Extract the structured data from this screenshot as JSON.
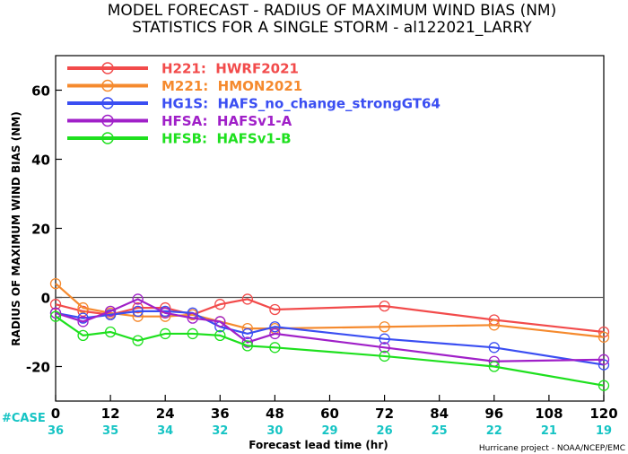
{
  "chart_data": {
    "type": "line",
    "title": "MODEL FORECAST - RADIUS OF MAXIMUM WIND BIAS (NM)",
    "subtitle": "STATISTICS FOR A SINGLE STORM - al122021_LARRY",
    "xlabel": "Forecast lead time (hr)",
    "ylabel": "RADIUS OF MAXIMUM WIND BIAS (NM)",
    "xlim": [
      0,
      120
    ],
    "ylim": [
      -30,
      70
    ],
    "xticks": [
      0,
      12,
      24,
      36,
      48,
      60,
      72,
      84,
      96,
      108,
      120
    ],
    "yticks": [
      -20,
      0,
      20,
      40,
      60
    ],
    "x": [
      0,
      6,
      12,
      18,
      24,
      30,
      36,
      42,
      48,
      72,
      96,
      120
    ],
    "reference_line_y": 0,
    "grid": false,
    "legend_position": "top-left",
    "series": [
      {
        "name": "H221:  HWRF2021",
        "color": "#f24b4b",
        "values": [
          -2,
          -4,
          -5,
          -3,
          -3,
          -5,
          -2,
          -0.5,
          -3.5,
          -2.5,
          -6.5,
          -10
        ]
      },
      {
        "name": "M221:  HMON2021",
        "color": "#f58a2e",
        "values": [
          4,
          -3,
          -4.5,
          -5.5,
          -5.5,
          -5,
          -7,
          -9,
          -9,
          -8.5,
          -8,
          -11.5
        ]
      },
      {
        "name": "HG1S:  HAFS_no_change_strongGT64",
        "color": "#3a4ef2",
        "values": [
          -4.5,
          -6,
          -5,
          -4,
          -4,
          -4.5,
          -8.5,
          -10.5,
          -8.5,
          -12,
          -14.5,
          -19.5
        ]
      },
      {
        "name": "HFSA:  HAFSv1-A",
        "color": "#a020c8",
        "values": [
          -4.5,
          -7,
          -4,
          -0.5,
          -4.5,
          -6,
          -7,
          -13,
          -10.5,
          -14.5,
          -18.5,
          -18
        ]
      },
      {
        "name": "HFSB:  HAFSv1-B",
        "color": "#1ee01e",
        "values": [
          -5.5,
          -11,
          -10,
          -12.5,
          -10.5,
          -10.5,
          -11,
          -14,
          -14.5,
          -17,
          -20,
          -25.5
        ]
      }
    ],
    "cases": {
      "label": "#CASE",
      "color": "#16c4c4",
      "x": [
        0,
        12,
        24,
        36,
        48,
        60,
        72,
        84,
        96,
        108,
        120
      ],
      "values": [
        "36",
        "35",
        "34",
        "32",
        "30",
        "29",
        "26",
        "25",
        "22",
        "21",
        "19"
      ]
    },
    "credit": "Hurricane project - NOAA/NCEP/EMC"
  }
}
